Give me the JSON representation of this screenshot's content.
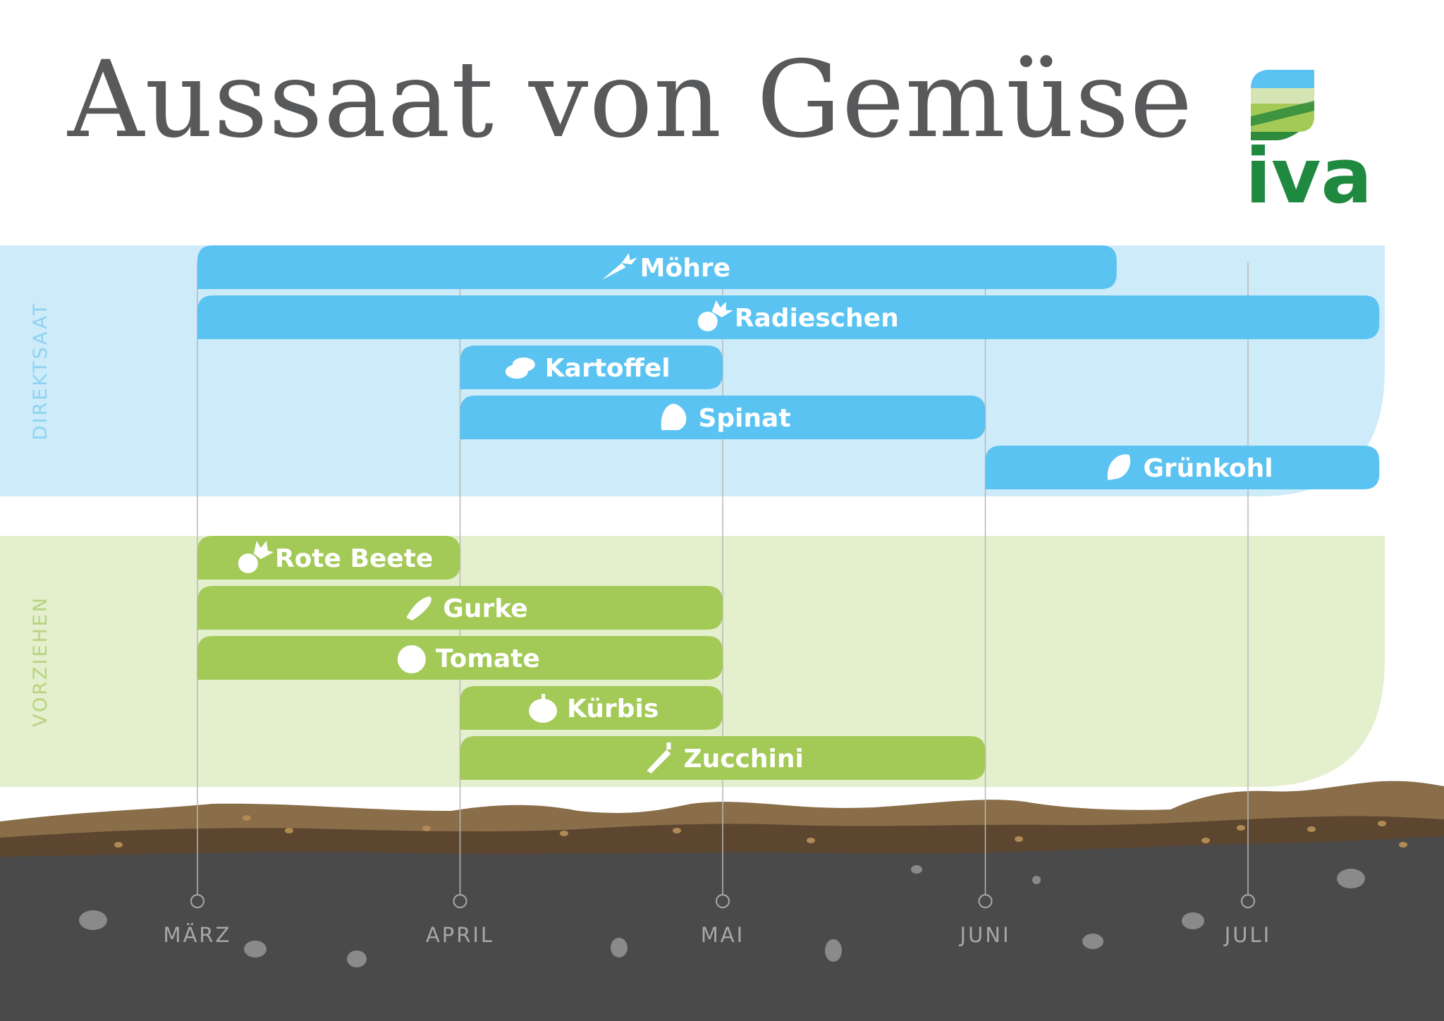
{
  "title": "Aussaat von Gemüse",
  "logo": {
    "text": "iva"
  },
  "chart_data": {
    "type": "bar",
    "subtype": "gantt",
    "title": "Aussaat von Gemüse",
    "months": [
      "MÄRZ",
      "APRIL",
      "MAI",
      "JUNI",
      "JULI"
    ],
    "groups": [
      {
        "name": "DIREKTSAAT",
        "color": "#5bc3f1",
        "bg_color": "#cdebf9",
        "label_color": "#8ed2f0",
        "items": [
          {
            "label": "Möhre",
            "icon": "carrot-icon",
            "start": 0,
            "end": 3.5
          },
          {
            "label": "Radieschen",
            "icon": "radish-icon",
            "start": 0,
            "end": 4.5
          },
          {
            "label": "Kartoffel",
            "icon": "potato-icon",
            "start": 1,
            "end": 2
          },
          {
            "label": "Spinat",
            "icon": "spinach-icon",
            "start": 1,
            "end": 3
          },
          {
            "label": "Grünkohl",
            "icon": "kale-icon",
            "start": 3,
            "end": 4.5
          }
        ]
      },
      {
        "name": "VORZIEHEN",
        "color": "#a3c957",
        "bg_color": "#e3efcd",
        "label_color": "#b6d37d",
        "items": [
          {
            "label": "Rote Beete",
            "icon": "beetroot-icon",
            "start": 0,
            "end": 1
          },
          {
            "label": "Gurke",
            "icon": "cucumber-icon",
            "start": 0,
            "end": 2
          },
          {
            "label": "Tomate",
            "icon": "tomato-icon",
            "start": 0,
            "end": 2
          },
          {
            "label": "Kürbis",
            "icon": "pumpkin-icon",
            "start": 1,
            "end": 2
          },
          {
            "label": "Zucchini",
            "icon": "zucchini-icon",
            "start": 1,
            "end": 3
          }
        ]
      }
    ]
  }
}
